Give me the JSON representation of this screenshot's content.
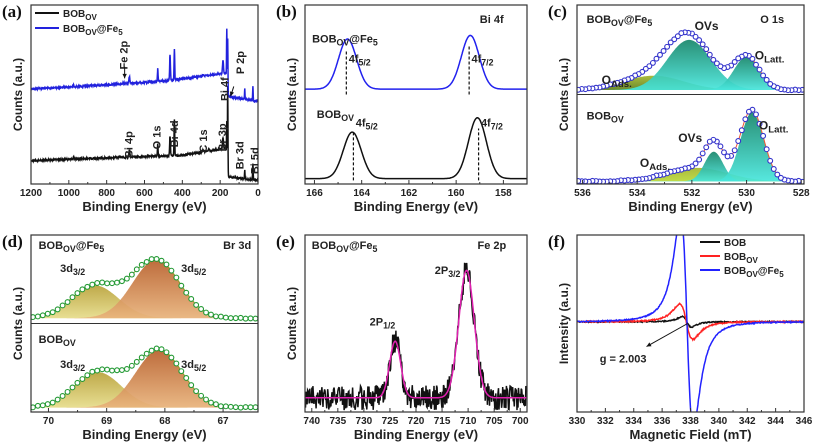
{
  "chart_data": [
    {
      "id": "a",
      "panel_label": "(a)",
      "type": "line",
      "xlabel": "Binding Energy (eV)",
      "ylabel": "Counts (a.u.)",
      "xlim": [
        1200,
        0
      ],
      "ylim": [
        0,
        1
      ],
      "xticks": [
        1200,
        1000,
        800,
        600,
        400,
        200,
        0
      ],
      "legend": [
        {
          "label": "BOB_{OV}",
          "color": "#111111"
        },
        {
          "label": "BOB_{OV}@Fe_{5}",
          "color": "#2222dd"
        }
      ],
      "series": [
        {
          "name": "BOB_{OV}",
          "color": "#111111",
          "role": "line",
          "noise": 0.004,
          "background": [
            [
              1200,
              0.13
            ],
            [
              700,
              0.15
            ],
            [
              400,
              0.16
            ],
            [
              170,
              0.2
            ],
            [
              158,
              0.04
            ],
            [
              0,
              0.02
            ]
          ],
          "peaks": [
            [
              160,
              0.48,
              3
            ],
            [
              165,
              0.22,
              3
            ],
            [
              185,
              0.06,
              6
            ],
            [
              442,
              0.2,
              4
            ],
            [
              465,
              0.11,
              5
            ],
            [
              530,
              0.07,
              4
            ],
            [
              680,
              0.04,
              6
            ],
            [
              70,
              0.05,
              3
            ],
            [
              27,
              0.09,
              3
            ],
            [
              975,
              0.012,
              4
            ],
            [
              290,
              0.012,
              6
            ],
            [
              260,
              0.01,
              6
            ]
          ]
        },
        {
          "name": "BOB_{OV}@Fe_{5}",
          "color": "#2222dd",
          "role": "line",
          "noise": 0.004,
          "background": [
            [
              1200,
              0.53
            ],
            [
              700,
              0.56
            ],
            [
              450,
              0.58
            ],
            [
              170,
              0.62
            ],
            [
              158,
              0.49
            ],
            [
              0,
              0.46
            ]
          ],
          "peaks": [
            [
              160,
              0.3,
              3
            ],
            [
              165,
              0.3,
              3
            ],
            [
              185,
              0.07,
              6
            ],
            [
              442,
              0.17,
              4
            ],
            [
              465,
              0.14,
              5
            ],
            [
              530,
              0.07,
              4
            ],
            [
              680,
              0.04,
              6
            ],
            [
              710,
              0.01,
              6
            ],
            [
              70,
              0.06,
              3
            ],
            [
              27,
              0.08,
              3
            ],
            [
              975,
              0.01,
              4
            ],
            [
              290,
              0.01,
              6
            ]
          ]
        }
      ],
      "annotations": [
        {
          "text": "Fe 2p",
          "x": 705,
          "y": 0.72
        },
        {
          "text": "P 2p",
          "x": 128,
          "y": 0.6
        },
        {
          "text": "Bi 4p",
          "x": 680,
          "y": 0.22
        },
        {
          "text": "O 1s",
          "x": 530,
          "y": 0.26
        },
        {
          "text": "Bi 4d",
          "x": 440,
          "y": 0.28
        },
        {
          "text": "C 1s",
          "x": 285,
          "y": 0.24
        },
        {
          "text": "Br 3p",
          "x": 185,
          "y": 0.26
        },
        {
          "text": "Bi 4f",
          "x": 150,
          "y": 0.53
        },
        {
          "text": "Br 3d",
          "x": 65,
          "y": 0.16
        },
        {
          "text": "Bi 5d",
          "x": 30,
          "y": 0.13
        }
      ],
      "arrows": [
        {
          "from": [
            705,
            0.655
          ],
          "to": [
            705,
            0.59
          ]
        },
        {
          "from": [
            128,
            0.545
          ],
          "to": [
            145,
            0.49
          ]
        }
      ]
    },
    {
      "id": "b",
      "panel_label": "(b)",
      "type": "line",
      "xlabel": "Binding Energy (eV)",
      "ylabel": "Counts (a.u.)",
      "xlim": [
        166.4,
        157
      ],
      "ylim": [
        0,
        1
      ],
      "xticks": [
        166,
        164,
        162,
        160,
        158
      ],
      "series": [
        {
          "name": "BOB_{OV}@Fe_{5}",
          "color": "#2222ee",
          "role": "line",
          "baseline": 0.53,
          "peaks": [
            [
              164.6,
              0.28,
              0.9
            ],
            [
              159.4,
              0.3,
              0.9
            ]
          ]
        },
        {
          "name": "BOB_{OV}",
          "color": "#111111",
          "role": "line",
          "baseline": 0.03,
          "peaks": [
            [
              164.4,
              0.26,
              0.9
            ],
            [
              159.1,
              0.34,
              0.9
            ]
          ]
        }
      ],
      "dashed_lines": [
        {
          "x": 164.65,
          "y": [
            0.5,
            0.75
          ]
        },
        {
          "x": 159.45,
          "y": [
            0.5,
            0.77
          ]
        },
        {
          "x": 164.35,
          "y": [
            0.02,
            0.29
          ]
        },
        {
          "x": 159.05,
          "y": [
            0.02,
            0.31
          ]
        }
      ],
      "annotations": [
        {
          "text": "BOB_{OV}@Fe_{5}",
          "x": 166.1,
          "y": 0.79
        },
        {
          "text": "Bi 4f",
          "x": 159.0,
          "y": 0.9
        },
        {
          "text": "4f_{5/2}",
          "x": 164.55,
          "y": 0.68
        },
        {
          "text": "4f_{7/2}",
          "x": 159.35,
          "y": 0.68
        },
        {
          "text": "BOB_{OV}",
          "x": 165.9,
          "y": 0.37
        },
        {
          "text": "4f_{5/2}",
          "x": 164.25,
          "y": 0.32
        },
        {
          "text": "4f_{7/2}",
          "x": 158.95,
          "y": 0.32
        }
      ]
    },
    {
      "id": "c",
      "panel_label": "(c)",
      "type": "line",
      "xlabel": "Binding Energy (eV)",
      "ylabel": "Counts (a.u.)",
      "xlim": [
        536.2,
        527.9
      ],
      "ylim": [
        0,
        2
      ],
      "divider": 1,
      "xticks": [
        536,
        534,
        532,
        530,
        528
      ],
      "series": [
        {
          "name": "O_{Ads.} (BOB_{OV}@Fe_{5})",
          "role": "component",
          "gradient": [
            "#a4b52c",
            "#5e7f1c"
          ],
          "baseline": 1.05,
          "peaks": [
            [
              533.4,
              0.16,
              2.6
            ]
          ]
        },
        {
          "name": "OVs (BOB_{OV}@Fe_{5})",
          "role": "component",
          "gradient": [
            "#17866a",
            "#48e6dc"
          ],
          "baseline": 1.05,
          "peaks": [
            [
              532.1,
              0.56,
              1.9
            ]
          ]
        },
        {
          "name": "O_{Latt.} (BOB_{OV}@Fe_{5})",
          "role": "component",
          "gradient": [
            "#17866a",
            "#48e6dc"
          ],
          "baseline": 1.05,
          "peaks": [
            [
              530.0,
              0.37,
              1.1
            ]
          ]
        },
        {
          "name": "Fit (BOB_{OV}@Fe_{5})",
          "role": "envelope",
          "color": "#ee5533",
          "baseline": 1.05,
          "peaks": [
            [
              533.4,
              0.16,
              2.6
            ],
            [
              532.1,
              0.56,
              1.9
            ],
            [
              530.0,
              0.37,
              1.1
            ]
          ]
        },
        {
          "name": "Measured (BOB_{OV}@Fe_{5})",
          "role": "measured",
          "color": "#3333cc",
          "step": 0.13,
          "baseline": 1.05,
          "peaks": [
            [
              533.4,
              0.16,
              2.6
            ],
            [
              532.1,
              0.56,
              1.9
            ],
            [
              530.0,
              0.37,
              1.1
            ]
          ]
        },
        {
          "name": "O_{Ads.} (BOB_{OV})",
          "role": "component",
          "gradient": [
            "#a4b52c",
            "#b9d83a"
          ],
          "baseline": 0.03,
          "peaks": [
            [
              531.8,
              0.15,
              2.6
            ]
          ]
        },
        {
          "name": "OVs (BOB_{OV})",
          "role": "component",
          "gradient": [
            "#17866a",
            "#48e6dc"
          ],
          "baseline": 0.03,
          "peaks": [
            [
              531.2,
              0.33,
              0.8
            ]
          ]
        },
        {
          "name": "O_{Latt.} (BOB_{OV})",
          "role": "component",
          "gradient": [
            "#17866a",
            "#48e6dc"
          ],
          "baseline": 0.03,
          "peaks": [
            [
              529.8,
              0.77,
              1.0
            ]
          ]
        },
        {
          "name": "Fit (BOB_{OV})",
          "role": "envelope",
          "color": "#ee5533",
          "baseline": 0.03,
          "peaks": [
            [
              531.8,
              0.15,
              2.6
            ],
            [
              531.2,
              0.33,
              0.8
            ],
            [
              529.8,
              0.77,
              1.0
            ]
          ]
        },
        {
          "name": "Measured (BOB_{OV})",
          "role": "measured",
          "color": "#3333cc",
          "step": 0.13,
          "baseline": 0.03,
          "peaks": [
            [
              531.8,
              0.15,
              2.6
            ],
            [
              531.2,
              0.33,
              0.8
            ],
            [
              529.8,
              0.77,
              1.0
            ]
          ]
        }
      ],
      "annotations": [
        {
          "text": "BOB_{OV}@Fe_{5}",
          "x": 535.85,
          "y": 1.8
        },
        {
          "text": "O 1s",
          "x": 529.5,
          "y": 1.8,
          "plain": true
        },
        {
          "text": "OVs",
          "x": 531.9,
          "y": 1.72,
          "color": "#1a8a5e",
          "big": true
        },
        {
          "text": "O_{Ads.}",
          "x": 535.3,
          "y": 1.12,
          "color": "#6a8a1c",
          "big": true
        },
        {
          "text": "O_{Latt.}",
          "x": 529.7,
          "y": 1.39,
          "color": "#1a8a5e",
          "big": true
        },
        {
          "text": "BOB_{OV}",
          "x": 535.85,
          "y": 0.72
        },
        {
          "text": "OVs",
          "x": 532.5,
          "y": 0.47,
          "color": "#1a8a5e",
          "big": true
        },
        {
          "text": "O_{Ads.}",
          "x": 533.9,
          "y": 0.19,
          "color": "#6a8a1c",
          "big": true
        },
        {
          "text": "O_{Latt.}",
          "x": 529.55,
          "y": 0.61,
          "color": "#1a8a5e",
          "big": true
        }
      ]
    },
    {
      "id": "d",
      "panel_label": "(d)",
      "type": "line",
      "xlabel": "Binding Energy (eV)",
      "ylabel": "Counts (a.u.)",
      "xlim": [
        70.3,
        66.4
      ],
      "ylim": [
        0,
        2
      ],
      "divider": 1,
      "xticks": [
        70,
        69,
        68,
        67
      ],
      "series": [
        {
          "name": "3d_{3/2} (BOB_{OV}@Fe_{5})",
          "role": "component",
          "gradient": [
            "#b9a23a",
            "#e6dc8a"
          ],
          "baseline": 1.06,
          "peaks": [
            [
              69.2,
              0.37,
              0.95
            ]
          ]
        },
        {
          "name": "3d_{5/2} (BOB_{OV}@Fe_{5})",
          "role": "component",
          "gradient": [
            "#b8602c",
            "#e8b27a"
          ],
          "baseline": 1.06,
          "peaks": [
            [
              68.15,
              0.66,
              0.95
            ]
          ]
        },
        {
          "name": "Fit (BOB_{OV}@Fe_{5})",
          "role": "envelope",
          "color": "#8a9a2a",
          "baseline": 1.06,
          "peaks": [
            [
              69.2,
              0.37,
              0.95
            ],
            [
              68.15,
              0.66,
              0.95
            ]
          ]
        },
        {
          "name": "Measured (BOB_{OV}@Fe_{5})",
          "role": "measured",
          "color": "#229933",
          "step": 0.085,
          "baseline": 1.06,
          "peaks": [
            [
              69.2,
              0.37,
              0.95
            ],
            [
              68.15,
              0.66,
              0.95
            ]
          ]
        },
        {
          "name": "3d_{3/2} (BOB_{OV})",
          "role": "component",
          "gradient": [
            "#b9a23a",
            "#e6dc8a"
          ],
          "baseline": 0.05,
          "peaks": [
            [
              69.15,
              0.4,
              0.95
            ]
          ]
        },
        {
          "name": "3d_{5/2} (BOB_{OV})",
          "role": "component",
          "gradient": [
            "#b8602c",
            "#e8b27a"
          ],
          "baseline": 0.05,
          "peaks": [
            [
              68.1,
              0.65,
              0.95
            ]
          ]
        },
        {
          "name": "Fit (BOB_{OV})",
          "role": "envelope",
          "color": "#8a9a2a",
          "baseline": 0.05,
          "peaks": [
            [
              69.15,
              0.4,
              0.95
            ],
            [
              68.1,
              0.65,
              0.95
            ]
          ]
        },
        {
          "name": "Measured (BOB_{OV})",
          "role": "measured",
          "color": "#229933",
          "step": 0.085,
          "baseline": 0.05,
          "peaks": [
            [
              69.15,
              0.4,
              0.95
            ],
            [
              68.1,
              0.65,
              0.95
            ]
          ]
        }
      ],
      "annotations": [
        {
          "text": "BOB_{OV}@Fe_{5}",
          "x": 70.17,
          "y": 1.84
        },
        {
          "text": "Br 3d",
          "x": 67.0,
          "y": 1.84,
          "plain": true
        },
        {
          "text": "3d_{3/2}",
          "x": 69.8,
          "y": 1.58,
          "color": "#b07a1a"
        },
        {
          "text": "3d_{5/2}",
          "x": 67.72,
          "y": 1.58,
          "color": "#b07a1a"
        },
        {
          "text": "BOB_{OV}",
          "x": 70.17,
          "y": 0.78
        },
        {
          "text": "3d_{3/2}",
          "x": 69.8,
          "y": 0.5,
          "color": "#b07a1a"
        },
        {
          "text": "3d_{5/2}",
          "x": 67.72,
          "y": 0.5,
          "color": "#b07a1a"
        }
      ]
    },
    {
      "id": "e",
      "panel_label": "(e)",
      "type": "line",
      "xlabel": "Binding Energy (eV)",
      "ylabel": "Counts (a.u.)",
      "xlim": [
        741.3,
        698.7
      ],
      "ylim": [
        0,
        1
      ],
      "xticks": [
        740,
        735,
        730,
        725,
        720,
        715,
        710,
        705,
        700
      ],
      "series": [
        {
          "name": "Measured",
          "role": "line",
          "color": "#111111",
          "noise": 0.07,
          "samples": 420,
          "baseline": 0.08,
          "peaks": [
            [
              724,
              0.32,
              2.5
            ],
            [
              710.3,
              0.72,
              3.5
            ]
          ]
        },
        {
          "name": "Fit",
          "role": "line",
          "color": "#e020b0",
          "baseline": 0.08,
          "peaks": [
            [
              724,
              0.32,
              2.5
            ],
            [
              710.3,
              0.72,
              3.5
            ]
          ]
        }
      ],
      "annotations": [
        {
          "text": "BOB_{OV}@Fe_{5}",
          "x": 740.0,
          "y": 0.92
        },
        {
          "text": "Fe 2p",
          "x": 708.2,
          "y": 0.92,
          "plain": true
        },
        {
          "text": "2P_{1/2}",
          "x": 728.9,
          "y": 0.49
        },
        {
          "text": "2P_{3/2}",
          "x": 716.4,
          "y": 0.78
        }
      ]
    },
    {
      "id": "f",
      "panel_label": "(f)",
      "type": "line",
      "xlabel": "Magnetic Field (mT)",
      "ylabel": "Intensity (a.u.)",
      "xlim": [
        330,
        346
      ],
      "ylim": [
        0,
        1
      ],
      "xticks": [
        330,
        332,
        334,
        336,
        338,
        340,
        342,
        344,
        346
      ],
      "legend": [
        {
          "label": "BOB",
          "color": "#111111"
        },
        {
          "label": "BOB_{OV}",
          "color": "#ff2222"
        },
        {
          "label": "BOB_{OV}@Fe_{5}",
          "color": "#2222ff"
        }
      ],
      "series": [
        {
          "name": "BOB",
          "role": "derivative",
          "color": "#111111",
          "baseline": 0.51,
          "center": 337.75,
          "width": 0.55,
          "amplitude": 0.03,
          "noise": 0.003
        },
        {
          "name": "BOB_{OV}",
          "role": "derivative",
          "color": "#ff2222",
          "baseline": 0.51,
          "center": 337.7,
          "width": 0.8,
          "amplitude": 0.1,
          "noise": 0.004
        },
        {
          "name": "BOB_{OV}@Fe_{5}",
          "role": "derivative",
          "color": "#2222ff",
          "baseline": 0.51,
          "center": 337.75,
          "width": 0.78,
          "amplitude": 0.6,
          "noise": 0.003
        }
      ],
      "annotations": [
        {
          "text": "g = 2.003",
          "x": 331.6,
          "y": 0.28
        }
      ],
      "arrows": [
        {
          "from": [
            337.8,
            0.5
          ],
          "to": [
            334.9,
            0.37
          ]
        }
      ]
    }
  ]
}
